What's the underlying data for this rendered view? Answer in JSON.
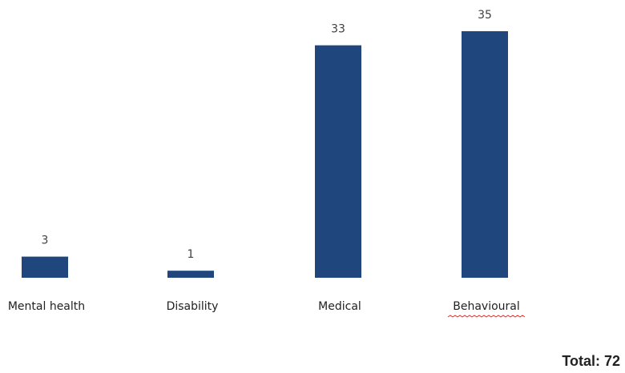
{
  "chart_data": {
    "type": "bar",
    "categories": [
      "Mental health",
      "Disability",
      "Medical",
      "Behavioural"
    ],
    "values": [
      3,
      1,
      33,
      35
    ],
    "data_labels": [
      "3",
      "1",
      "33",
      "35"
    ],
    "bar_color": "#1F477E",
    "grid": false,
    "legend": "none",
    "total_label": "Total: 72"
  }
}
